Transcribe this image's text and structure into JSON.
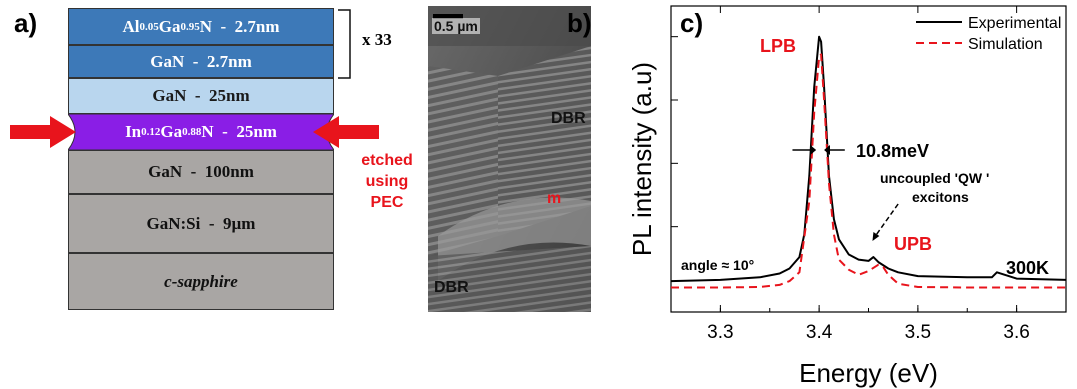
{
  "panel_a": {
    "letter": "a)",
    "repeat_label": "x 33",
    "layers": {
      "algan": {
        "prefix": "Al",
        "sub1": "0.05",
        "mid": "Ga",
        "sub2": "0.95",
        "suffix": "N  -  2.7nm"
      },
      "gan_thin": "GaN  -  2.7nm",
      "gan_25": "GaN  -  25nm",
      "ingan": {
        "prefix": "In",
        "sub1": "0.12",
        "mid": "Ga",
        "sub2": "0.88",
        "suffix": "N  -  25nm"
      },
      "gan_100": "GaN  -  100nm",
      "gansi": "GaN:Si  -  9µm",
      "sapphire": "c-sapphire"
    },
    "etch_note": [
      "etched",
      "using",
      "PEC"
    ],
    "colors": {
      "dark_blue": "#3d79b8",
      "light_blue": "#b9d6ee",
      "purple": "#8a1ee6",
      "gray": "#a9a6a4",
      "arrow": "#e8141c"
    }
  },
  "panel_b": {
    "letter": "b)",
    "scale_bar": "0.5 µm",
    "label_dbr_top": "DBR",
    "label_m": "m",
    "label_dbr_bottom": "DBR"
  },
  "panel_c": {
    "letter": "c)",
    "annot_lpb": "LPB",
    "annot_fwhm": "10.8meV",
    "annot_uncoupled_1": "uncoupled 'QW '",
    "annot_uncoupled_2": "excitons",
    "annot_upb": "UPB",
    "annot_angle": "angle ≈ 10°",
    "annot_temp": "300K"
  },
  "chart_data": {
    "type": "line",
    "xlabel": "Energy (eV)",
    "ylabel": "PL intensity (a.u)",
    "xlim": [
      3.25,
      3.65
    ],
    "xticks": [
      "3.3",
      "3.4",
      "3.5",
      "3.6"
    ],
    "xtick_values": [
      3.3,
      3.4,
      3.5,
      3.6
    ],
    "ylim": [
      0,
      1.05
    ],
    "legend_position": "top-right",
    "series": [
      {
        "name": "Experimental",
        "style": "solid",
        "color": "#000000",
        "x": [
          3.25,
          3.3,
          3.34,
          3.36,
          3.37,
          3.38,
          3.385,
          3.39,
          3.395,
          3.4,
          3.402,
          3.405,
          3.41,
          3.415,
          3.42,
          3.43,
          3.44,
          3.45,
          3.455,
          3.46,
          3.47,
          3.48,
          3.5,
          3.55,
          3.575,
          3.58,
          3.6,
          3.65
        ],
        "y": [
          0.035,
          0.04,
          0.05,
          0.065,
          0.085,
          0.13,
          0.22,
          0.45,
          0.8,
          1.0,
          0.98,
          0.8,
          0.45,
          0.28,
          0.2,
          0.14,
          0.12,
          0.115,
          0.13,
          0.11,
          0.085,
          0.07,
          0.055,
          0.05,
          0.05,
          0.07,
          0.045,
          0.04
        ]
      },
      {
        "name": "Simulation",
        "style": "dashed",
        "color": "#e8141c",
        "x": [
          3.25,
          3.3,
          3.34,
          3.36,
          3.37,
          3.38,
          3.39,
          3.395,
          3.4,
          3.402,
          3.405,
          3.41,
          3.415,
          3.42,
          3.43,
          3.44,
          3.45,
          3.46,
          3.465,
          3.47,
          3.48,
          3.5,
          3.55,
          3.6,
          3.65
        ],
        "y": [
          0.01,
          0.01,
          0.012,
          0.02,
          0.035,
          0.07,
          0.35,
          0.7,
          0.92,
          0.93,
          0.75,
          0.42,
          0.22,
          0.12,
          0.08,
          0.06,
          0.075,
          0.1,
          0.09,
          0.06,
          0.025,
          0.012,
          0.01,
          0.01,
          0.01
        ]
      }
    ]
  }
}
